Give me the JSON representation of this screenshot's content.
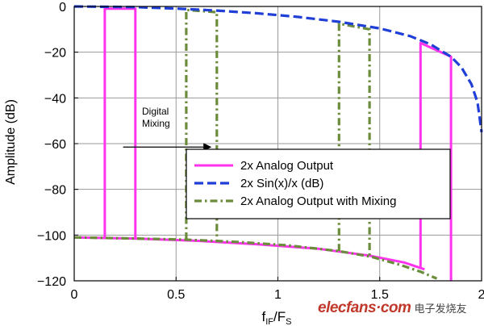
{
  "chart_data": {
    "type": "line",
    "title": "",
    "xlabel_main": "f",
    "xlabel_sub1": "IF",
    "xlabel_mid": "/F",
    "xlabel_sub2": "S",
    "ylabel": "Amplitude (dB)",
    "xlim": [
      0,
      2
    ],
    "ylim": [
      -120,
      0
    ],
    "xticks": [
      0,
      0.5,
      1,
      1.5,
      2
    ],
    "xtick_labels": [
      "0",
      "0.5",
      "1",
      "1.5",
      "2"
    ],
    "yticks": [
      0,
      -20,
      -40,
      -60,
      -80,
      -100,
      -120
    ],
    "ytick_labels": [
      "0",
      "−20",
      "−40",
      "−60",
      "−80",
      "−100",
      "−120"
    ],
    "grid": true,
    "legend_position": "center-right",
    "annotation": {
      "lines": [
        "Digital",
        "Mixing"
      ],
      "arrow": {
        "x1": 0.24,
        "y1": -61.5,
        "x2": 0.67,
        "y2": -61.5
      }
    },
    "series": [
      {
        "name": "2x Analog Output",
        "color": "#ff33ee",
        "style": "solid",
        "segments": [
          [
            [
              0.0,
              -101
            ],
            [
              0.3,
              -101.5
            ],
            [
              0.6,
              -102.5
            ],
            [
              0.9,
              -104
            ],
            [
              1.2,
              -106
            ],
            [
              1.45,
              -109
            ],
            [
              1.62,
              -112
            ],
            [
              1.72,
              -115
            ]
          ],
          [
            [
              0.15,
              -101.2
            ],
            [
              0.15,
              -1
            ],
            [
              0.3,
              -1
            ],
            [
              0.3,
              -101.5
            ]
          ],
          [
            [
              1.7,
              -114.5
            ],
            [
              1.7,
              -16
            ],
            [
              1.85,
              -22
            ],
            [
              1.85,
              -120
            ]
          ]
        ]
      },
      {
        "name": "2x Sin(x)/x (dB)",
        "color": "#1f3fd6",
        "style": "dashed",
        "segments": [
          [
            [
              0.0,
              0
            ],
            [
              0.3,
              -0.3
            ],
            [
              0.5,
              -0.9
            ],
            [
              0.7,
              -1.8
            ],
            [
              0.9,
              -3.0
            ],
            [
              1.1,
              -4.6
            ],
            [
              1.3,
              -6.7
            ],
            [
              1.5,
              -9.6
            ],
            [
              1.65,
              -13.0
            ],
            [
              1.75,
              -16.6
            ],
            [
              1.85,
              -22.0
            ],
            [
              1.9,
              -26.5
            ],
            [
              1.95,
              -34.0
            ],
            [
              1.98,
              -42.0
            ],
            [
              2.0,
              -55.0
            ]
          ]
        ]
      },
      {
        "name": "2x Analog Output with Mixing",
        "color": "#6b8c3a",
        "style": "dashdot",
        "segments": [
          [
            [
              0.0,
              -101
            ],
            [
              0.3,
              -101.5
            ],
            [
              0.55,
              -102.0
            ],
            [
              0.8,
              -103.0
            ],
            [
              1.05,
              -104.5
            ],
            [
              1.3,
              -107.0
            ],
            [
              1.46,
              -109.5
            ],
            [
              1.6,
              -113.0
            ],
            [
              1.7,
              -116.0
            ],
            [
              1.78,
              -119.0
            ]
          ],
          [
            [
              0.55,
              -102.0
            ],
            [
              0.55,
              -1.5
            ],
            [
              0.7,
              -2.5
            ],
            [
              0.7,
              -102.8
            ]
          ],
          [
            [
              1.3,
              -107.0
            ],
            [
              1.3,
              -7.5
            ],
            [
              1.45,
              -10.0
            ],
            [
              1.45,
              -109.2
            ]
          ]
        ]
      }
    ]
  },
  "watermark": {
    "logo_text": "elecfans·com",
    "cn_text": "电子发烧友"
  }
}
